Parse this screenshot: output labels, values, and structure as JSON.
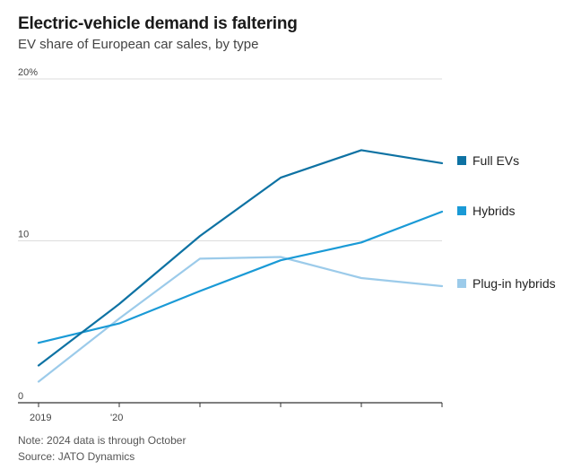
{
  "header": {
    "title": "Electric-vehicle demand is faltering",
    "subtitle": "EV share of European car sales, by type"
  },
  "footer": {
    "note": "Note: 2024 data is through October",
    "source": "Source: JATO Dynamics"
  },
  "colors": {
    "full_evs": "#0e72a3",
    "hybrids": "#1a9ad6",
    "plug_in_hybrids": "#9ccbea",
    "gridline": "#dddddd",
    "axis": "#333333"
  },
  "chart_data": {
    "type": "line",
    "title": "Electric-vehicle demand is faltering",
    "subtitle": "EV share of European car sales, by type",
    "xlabel": "",
    "ylabel": "",
    "x": [
      2019,
      2020,
      2021,
      2022,
      2023,
      2024
    ],
    "x_tick_labels": [
      "2019",
      "'20",
      "",
      "",
      "",
      ""
    ],
    "xlim": [
      2019,
      2024
    ],
    "ylim": [
      0,
      20
    ],
    "y_ticks": [
      0,
      10,
      20
    ],
    "y_tick_labels": [
      "0",
      "10",
      "20%"
    ],
    "grid": true,
    "legend_placement": "right",
    "series": [
      {
        "key": "full_evs",
        "name": "Full EVs",
        "values": [
          2.3,
          6.1,
          10.3,
          13.9,
          15.6,
          14.8
        ]
      },
      {
        "key": "hybrids",
        "name": "Hybrids",
        "values": [
          3.7,
          4.9,
          6.9,
          8.8,
          9.9,
          11.8
        ]
      },
      {
        "key": "plug_in_hybrids",
        "name": "Plug-in hybrids",
        "values": [
          1.3,
          5.2,
          8.9,
          9.0,
          7.7,
          7.2
        ]
      }
    ]
  }
}
